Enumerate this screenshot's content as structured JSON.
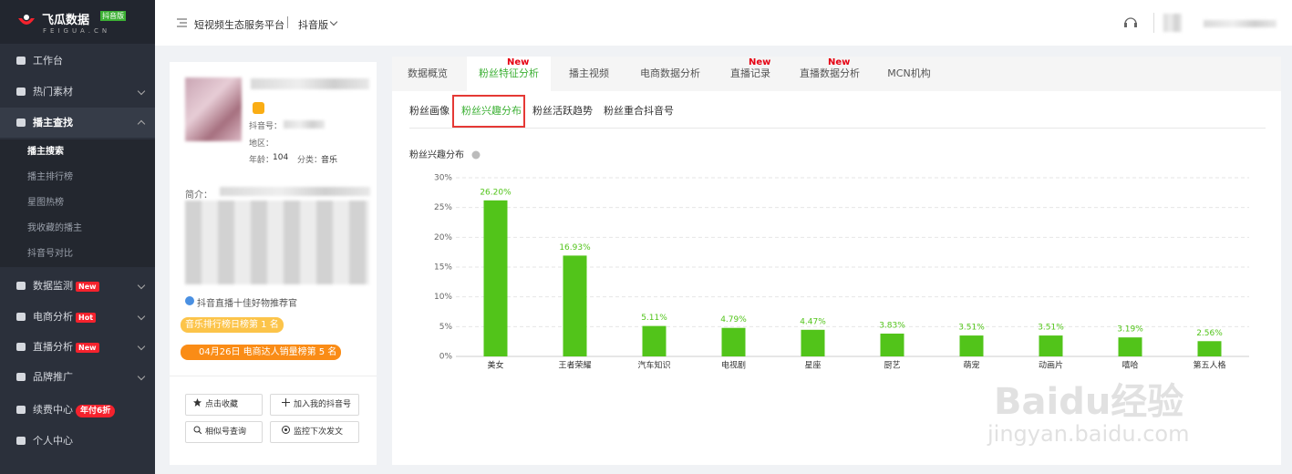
{
  "sidebar": {
    "logo": "飞瓜数据",
    "badge": "抖音版",
    "domain": "FEIGUA.CN",
    "menu": [
      {
        "label": "工作台"
      },
      {
        "label": "热门素材"
      },
      {
        "label": "播主查找",
        "children": [
          "播主搜索",
          "播主排行榜",
          "星图热榜",
          "我收藏的播主",
          "抖音号对比"
        ]
      },
      {
        "label": "数据监测",
        "tag": "New"
      },
      {
        "label": "电商分析",
        "tag": "Hot"
      },
      {
        "label": "直播分析",
        "tag": "New"
      },
      {
        "label": "品牌推广"
      },
      {
        "label": "续费中心",
        "tag": "年付6折"
      },
      {
        "label": "个人中心"
      }
    ]
  },
  "topbar": {
    "platform": "短视频生态服务平台",
    "version": "抖音版"
  },
  "profile": {
    "account_label": "抖音号：",
    "region_label": "地区：",
    "age_label": "年龄：",
    "age": 104,
    "category_label": "分类：",
    "category": "音乐",
    "intro_label": "简介：",
    "title": "抖音直播十佳好物推荐官",
    "rankings": [
      "音乐排行榜日榜第 1 名",
      "04月26日 电商达人销量榜第 5 名"
    ],
    "buttons": [
      "点击收藏",
      "加入我的抖音号",
      "相似号查询",
      "监控下次发文"
    ]
  },
  "tabs": [
    {
      "label": "数据概览"
    },
    {
      "label": "粉丝特征分析",
      "tag": "New"
    },
    {
      "label": "播主视频"
    },
    {
      "label": "电商数据分析"
    },
    {
      "label": "直播记录",
      "tag": "New"
    },
    {
      "label": "直播数据分析",
      "tag": "New"
    },
    {
      "label": "MCN机构"
    }
  ],
  "subtabs": [
    "粉丝画像",
    "粉丝兴趣分布",
    "粉丝活跃趋势",
    "粉丝重合抖音号"
  ],
  "chart_data": {
    "type": "bar",
    "title": "粉丝兴趣分布",
    "categories": [
      "美女",
      "王者荣耀",
      "汽车知识",
      "电视剧",
      "星座",
      "厨艺",
      "萌宠",
      "动画片",
      "嘻哈",
      "第五人格"
    ],
    "values": [
      26.2,
      16.93,
      5.11,
      4.79,
      4.47,
      3.83,
      3.51,
      3.51,
      3.19,
      2.56
    ],
    "value_labels": [
      "26.20%",
      "16.93%",
      "5.11%",
      "4.79%",
      "4.47%",
      "3.83%",
      "3.51%",
      "3.51%",
      "3.19%",
      "2.56%"
    ],
    "color": "#52c41a",
    "ylim": [
      0,
      30
    ],
    "yticks": [
      {
        "value": 0,
        "label": "0%"
      },
      {
        "value": 5,
        "label": "5%"
      },
      {
        "value": 10,
        "label": "10%"
      },
      {
        "value": 15,
        "label": "15%"
      },
      {
        "value": 20,
        "label": "20%"
      },
      {
        "value": 25,
        "label": "25%"
      },
      {
        "value": 30,
        "label": "30%"
      }
    ],
    "grid": true
  },
  "watermark": {
    "brand": "Baidu经验",
    "url": "jingyan.baidu.com"
  }
}
